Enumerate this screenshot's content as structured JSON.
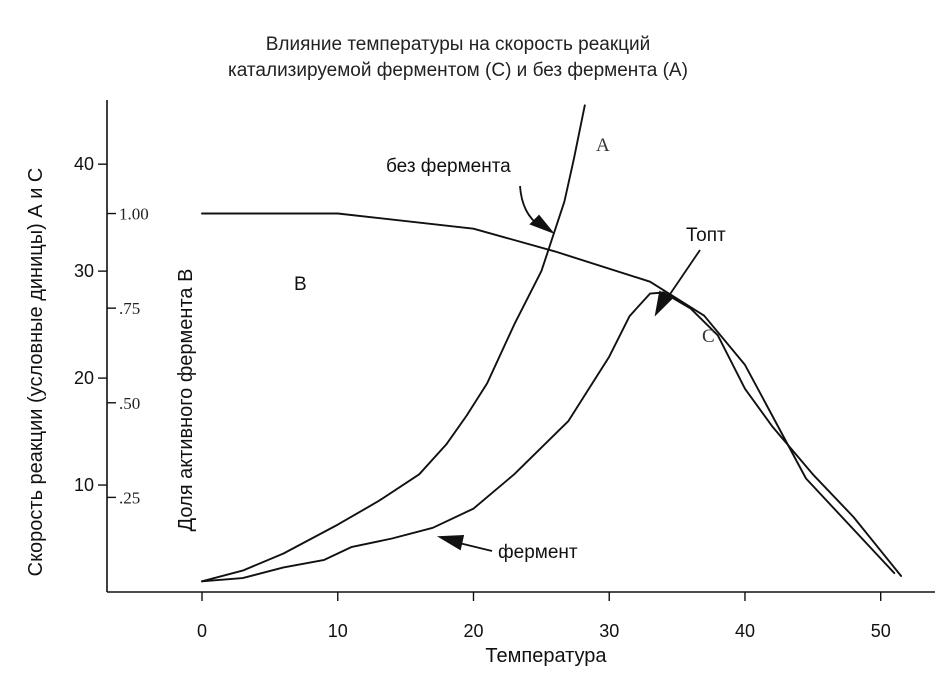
{
  "chart_data": {
    "type": "line",
    "title": [
      "Влияние температуры на скорость реакций",
      "катализируемой ферментом (С) и без фермента (А)"
    ],
    "xlabel": "Температура",
    "ylabel_left": "Скорость реакции (условные диницы) А и С",
    "ylabel_right": "Доля активного фермента В",
    "xlim": [
      -7,
      54
    ],
    "ylim_left": [
      0,
      46
    ],
    "ylim_right": [
      0,
      1.3
    ],
    "x_ticks": [
      "0",
      "10",
      "20",
      "30",
      "40",
      "50"
    ],
    "y_ticks_left": [
      "10",
      "20",
      "30",
      "40"
    ],
    "y_ticks_right": [
      ".25",
      ".50",
      ".75",
      "1.00"
    ],
    "grid": false,
    "series": [
      {
        "name": "A",
        "caption": "без фермента",
        "axis": "left",
        "points": [
          [
            0,
            1.0
          ],
          [
            3,
            2.0
          ],
          [
            6,
            3.6
          ],
          [
            10,
            6.3
          ],
          [
            13,
            8.5
          ],
          [
            16,
            11.0
          ],
          [
            18,
            13.8
          ],
          [
            19.5,
            16.5
          ],
          [
            21,
            19.5
          ],
          [
            23,
            25.0
          ],
          [
            25,
            30.0
          ],
          [
            26.7,
            36.5
          ],
          [
            27.4,
            40.5
          ],
          [
            28.2,
            45.5
          ]
        ]
      },
      {
        "name": "C",
        "caption": "фермент",
        "axis": "left",
        "points": [
          [
            0,
            1.0
          ],
          [
            3,
            1.3
          ],
          [
            6,
            2.3
          ],
          [
            9,
            3.0
          ],
          [
            11,
            4.2
          ],
          [
            14,
            5.0
          ],
          [
            17,
            6.0
          ],
          [
            20,
            7.8
          ],
          [
            23,
            11.0
          ],
          [
            27,
            16.0
          ],
          [
            30,
            22.0
          ],
          [
            31.5,
            25.8
          ],
          [
            33,
            27.9
          ],
          [
            34,
            28.0
          ],
          [
            36,
            26.5
          ],
          [
            38,
            24.0
          ],
          [
            40,
            19.0
          ],
          [
            42,
            15.5
          ],
          [
            45,
            11.0
          ],
          [
            48,
            7.0
          ],
          [
            51.5,
            1.5
          ]
        ]
      },
      {
        "name": "B",
        "axis": "right",
        "points": [
          [
            0,
            1.0
          ],
          [
            10,
            1.0
          ],
          [
            20,
            0.96
          ],
          [
            26,
            0.9
          ],
          [
            33,
            0.82
          ],
          [
            37,
            0.73
          ],
          [
            40,
            0.6
          ],
          [
            44.5,
            0.3
          ],
          [
            51,
            0.05
          ]
        ]
      }
    ],
    "annotations": [
      {
        "text": "без фермента",
        "points_to": "A"
      },
      {
        "text": "фермент",
        "points_to": "C"
      },
      {
        "text": "Топт",
        "points_to": "C peak"
      },
      {
        "text": "А",
        "series": "A"
      },
      {
        "text": "С",
        "series": "C"
      },
      {
        "text": "В",
        "series": "B"
      }
    ]
  }
}
